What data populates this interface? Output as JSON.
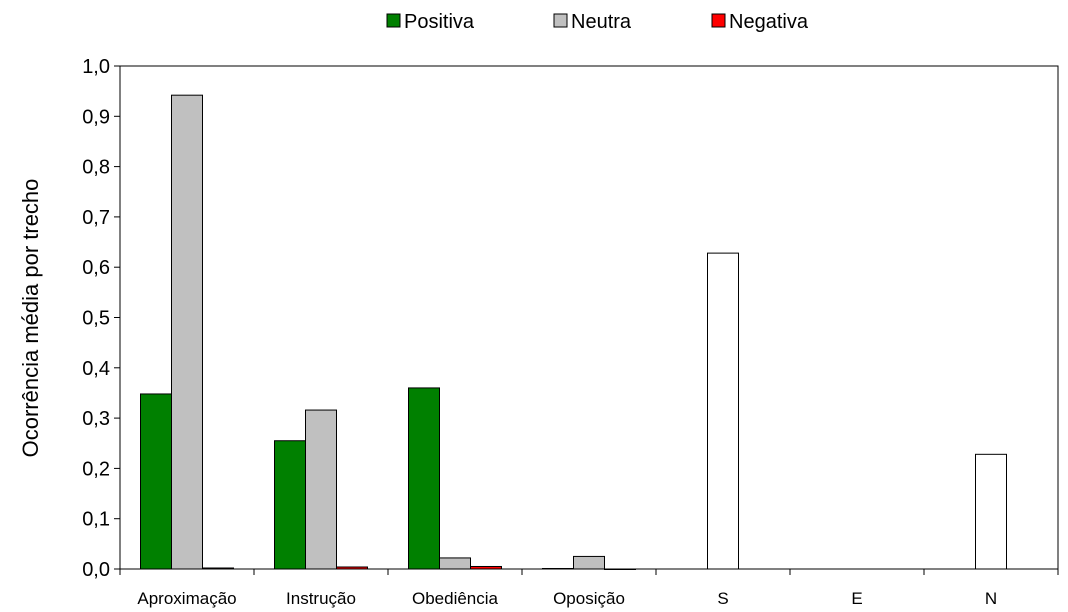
{
  "chart_data": {
    "type": "bar",
    "ylabel": "Ocorrência média por trecho",
    "xlabel": "",
    "ylim": [
      0,
      1.0
    ],
    "ytick_step": 0.1,
    "yticks": [
      "0,0",
      "0,1",
      "0,2",
      "0,3",
      "0,4",
      "0,5",
      "0,6",
      "0,7",
      "0,8",
      "0,9",
      "1,0"
    ],
    "categories": [
      "Aproximação",
      "Instrução",
      "Obediência",
      "Oposição",
      "S",
      "E",
      "N"
    ],
    "legend_position": "top-center",
    "grid": false,
    "series": [
      {
        "name": "Positiva",
        "color": "#008000",
        "values": [
          0.348,
          0.255,
          0.36,
          0.001,
          null,
          null,
          null
        ]
      },
      {
        "name": "Neutra",
        "color": "#C0C0C0",
        "values": [
          0.942,
          0.316,
          0.022,
          0.025,
          null,
          null,
          null
        ]
      },
      {
        "name": "Negativa",
        "color": "#FF0000",
        "values": [
          0.002,
          0.004,
          0.005,
          0.0,
          null,
          null,
          null
        ]
      }
    ],
    "single_values": {
      "color": "#FFFFFF",
      "values": [
        null,
        null,
        null,
        null,
        0.628,
        0.0,
        0.228
      ]
    }
  }
}
